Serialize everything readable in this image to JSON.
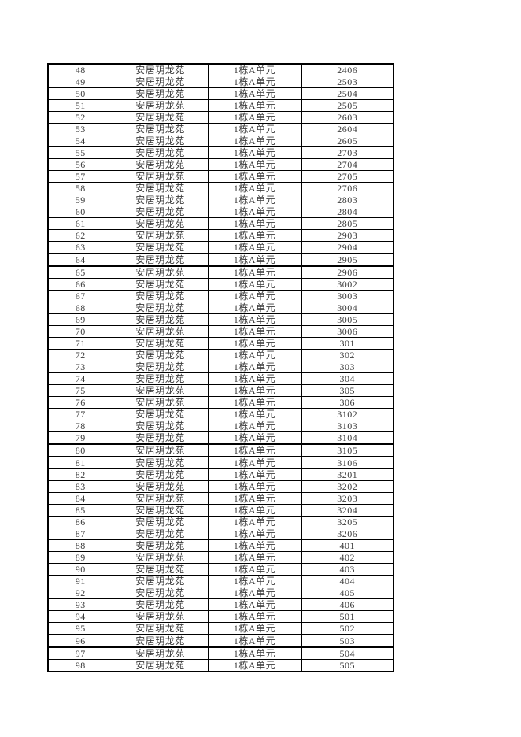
{
  "page": {
    "background": "#ffffff",
    "border_color": "#000000",
    "text_color": "#3b3b3b"
  },
  "table": {
    "description": "housing-unit-list",
    "columns": [
      "seq",
      "community",
      "unit",
      "room"
    ],
    "thick_border_rows": [
      "64",
      "80",
      "96"
    ],
    "rows": [
      [
        "48",
        "安居玥龙苑",
        "1栋A单元",
        "2406"
      ],
      [
        "49",
        "安居玥龙苑",
        "1栋A单元",
        "2503"
      ],
      [
        "50",
        "安居玥龙苑",
        "1栋A单元",
        "2504"
      ],
      [
        "51",
        "安居玥龙苑",
        "1栋A单元",
        "2505"
      ],
      [
        "52",
        "安居玥龙苑",
        "1栋A单元",
        "2603"
      ],
      [
        "53",
        "安居玥龙苑",
        "1栋A单元",
        "2604"
      ],
      [
        "54",
        "安居玥龙苑",
        "1栋A单元",
        "2605"
      ],
      [
        "55",
        "安居玥龙苑",
        "1栋A单元",
        "2703"
      ],
      [
        "56",
        "安居玥龙苑",
        "1栋A单元",
        "2704"
      ],
      [
        "57",
        "安居玥龙苑",
        "1栋A单元",
        "2705"
      ],
      [
        "58",
        "安居玥龙苑",
        "1栋A单元",
        "2706"
      ],
      [
        "59",
        "安居玥龙苑",
        "1栋A单元",
        "2803"
      ],
      [
        "60",
        "安居玥龙苑",
        "1栋A单元",
        "2804"
      ],
      [
        "61",
        "安居玥龙苑",
        "1栋A单元",
        "2805"
      ],
      [
        "62",
        "安居玥龙苑",
        "1栋A单元",
        "2903"
      ],
      [
        "63",
        "安居玥龙苑",
        "1栋A单元",
        "2904"
      ],
      [
        "64",
        "安居玥龙苑",
        "1栋A单元",
        "2905"
      ],
      [
        "65",
        "安居玥龙苑",
        "1栋A单元",
        "2906"
      ],
      [
        "66",
        "安居玥龙苑",
        "1栋A单元",
        "3002"
      ],
      [
        "67",
        "安居玥龙苑",
        "1栋A单元",
        "3003"
      ],
      [
        "68",
        "安居玥龙苑",
        "1栋A单元",
        "3004"
      ],
      [
        "69",
        "安居玥龙苑",
        "1栋A单元",
        "3005"
      ],
      [
        "70",
        "安居玥龙苑",
        "1栋A单元",
        "3006"
      ],
      [
        "71",
        "安居玥龙苑",
        "1栋A单元",
        "301"
      ],
      [
        "72",
        "安居玥龙苑",
        "1栋A单元",
        "302"
      ],
      [
        "73",
        "安居玥龙苑",
        "1栋A单元",
        "303"
      ],
      [
        "74",
        "安居玥龙苑",
        "1栋A单元",
        "304"
      ],
      [
        "75",
        "安居玥龙苑",
        "1栋A单元",
        "305"
      ],
      [
        "76",
        "安居玥龙苑",
        "1栋A单元",
        "306"
      ],
      [
        "77",
        "安居玥龙苑",
        "1栋A单元",
        "3102"
      ],
      [
        "78",
        "安居玥龙苑",
        "1栋A单元",
        "3103"
      ],
      [
        "79",
        "安居玥龙苑",
        "1栋A单元",
        "3104"
      ],
      [
        "80",
        "安居玥龙苑",
        "1栋A单元",
        "3105"
      ],
      [
        "81",
        "安居玥龙苑",
        "1栋A单元",
        "3106"
      ],
      [
        "82",
        "安居玥龙苑",
        "1栋A单元",
        "3201"
      ],
      [
        "83",
        "安居玥龙苑",
        "1栋A单元",
        "3202"
      ],
      [
        "84",
        "安居玥龙苑",
        "1栋A单元",
        "3203"
      ],
      [
        "85",
        "安居玥龙苑",
        "1栋A单元",
        "3204"
      ],
      [
        "86",
        "安居玥龙苑",
        "1栋A单元",
        "3205"
      ],
      [
        "87",
        "安居玥龙苑",
        "1栋A单元",
        "3206"
      ],
      [
        "88",
        "安居玥龙苑",
        "1栋A单元",
        "401"
      ],
      [
        "89",
        "安居玥龙苑",
        "1栋A单元",
        "402"
      ],
      [
        "90",
        "安居玥龙苑",
        "1栋A单元",
        "403"
      ],
      [
        "91",
        "安居玥龙苑",
        "1栋A单元",
        "404"
      ],
      [
        "92",
        "安居玥龙苑",
        "1栋A单元",
        "405"
      ],
      [
        "93",
        "安居玥龙苑",
        "1栋A单元",
        "406"
      ],
      [
        "94",
        "安居玥龙苑",
        "1栋A单元",
        "501"
      ],
      [
        "95",
        "安居玥龙苑",
        "1栋A单元",
        "502"
      ],
      [
        "96",
        "安居玥龙苑",
        "1栋A单元",
        "503"
      ],
      [
        "97",
        "安居玥龙苑",
        "1栋A单元",
        "504"
      ],
      [
        "98",
        "安居玥龙苑",
        "1栋A单元",
        "505"
      ]
    ]
  }
}
